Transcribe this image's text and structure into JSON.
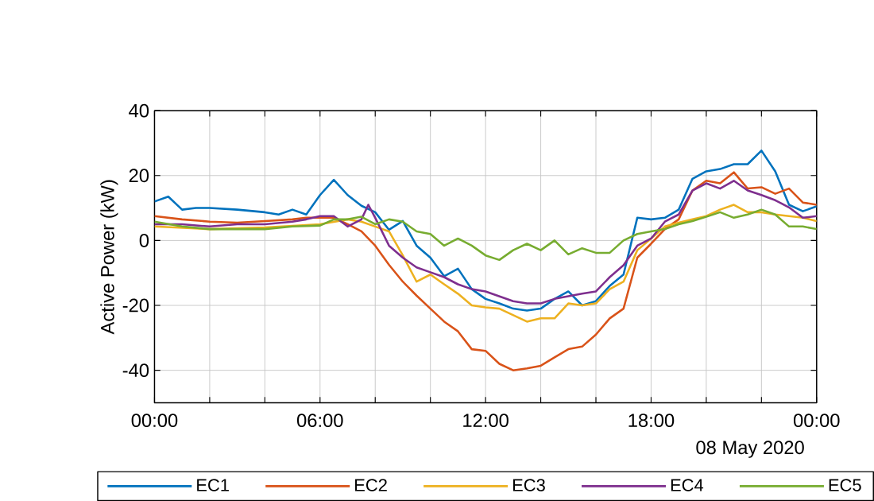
{
  "chart_data": {
    "type": "line",
    "ylabel": "Active Power (kW)",
    "xlim": [
      0,
      24
    ],
    "ylim": [
      -50,
      40
    ],
    "xticks": [
      {
        "value": 0,
        "label": "00:00"
      },
      {
        "value": 2,
        "label": null
      },
      {
        "value": 4,
        "label": null
      },
      {
        "value": 6,
        "label": "06:00"
      },
      {
        "value": 8,
        "label": null
      },
      {
        "value": 10,
        "label": null
      },
      {
        "value": 12,
        "label": "12:00"
      },
      {
        "value": 14,
        "label": null
      },
      {
        "value": 16,
        "label": null
      },
      {
        "value": 18,
        "label": "18:00"
      },
      {
        "value": 20,
        "label": null
      },
      {
        "value": 22,
        "label": null
      },
      {
        "value": 24,
        "label": "00:00"
      }
    ],
    "yticks": [
      -40,
      -20,
      0,
      20,
      40
    ],
    "grid": true,
    "legend": "bottom",
    "marker": "none",
    "line_style": "solid",
    "annotations": [
      "08 May 2020"
    ],
    "series": [
      {
        "name": "EC1",
        "color": "#0072bd",
        "x": [
          0,
          0.5,
          1,
          1.5,
          2,
          3,
          4,
          4.5,
          5,
          5.5,
          6,
          6.5,
          7,
          7.5,
          8,
          8.5,
          9,
          9.5,
          10,
          10.5,
          11,
          11.5,
          12,
          12.5,
          13,
          13.5,
          14,
          14.5,
          15,
          15.5,
          16,
          16.5,
          17,
          17.5,
          18,
          18.5,
          19,
          19.5,
          20,
          20.5,
          21,
          21.5,
          22,
          22.5,
          23,
          23.5,
          24
        ],
        "values": [
          12,
          13.5,
          9.5,
          10,
          10,
          9.5,
          8.7,
          8,
          9.5,
          8,
          14,
          18.7,
          14,
          10.7,
          8.7,
          3.3,
          6,
          -1.6,
          -5.3,
          -11,
          -8.7,
          -15,
          -18,
          -19.4,
          -21,
          -21.6,
          -21,
          -18,
          -15.7,
          -20,
          -18.7,
          -14,
          -10.5,
          7,
          6.5,
          7,
          9.5,
          19,
          21.3,
          22,
          23.5,
          23.5,
          27.7,
          21.3,
          11,
          9,
          10.5
        ]
      },
      {
        "name": "EC2",
        "color": "#d95319",
        "x": [
          0,
          1,
          2,
          3,
          4,
          5,
          5.5,
          6,
          6.5,
          7,
          7.5,
          8,
          8.5,
          9,
          9.5,
          10,
          10.5,
          11,
          11.5,
          12,
          12.5,
          13,
          13.5,
          14,
          14.5,
          15,
          15.5,
          16,
          16.5,
          17,
          17.5,
          18,
          18.5,
          19,
          19.5,
          20,
          20.5,
          21,
          21.5,
          22,
          22.5,
          23,
          23.5,
          24
        ],
        "values": [
          7.5,
          6.5,
          5.8,
          5.5,
          6,
          6.5,
          7,
          7,
          7,
          5,
          2.8,
          -1.6,
          -7.5,
          -12.7,
          -17,
          -21,
          -25,
          -28,
          -33.5,
          -34,
          -38,
          -40,
          -39.4,
          -38.6,
          -36,
          -33.5,
          -32.7,
          -29,
          -24,
          -21,
          -5.3,
          -1,
          3.5,
          6.5,
          15.4,
          18.4,
          17.6,
          21,
          16,
          16.4,
          14.4,
          16,
          11.7,
          11
        ]
      },
      {
        "name": "EC3",
        "color": "#edb120",
        "x": [
          0,
          2,
          4,
          6,
          7,
          7.5,
          8,
          8.5,
          9,
          9.5,
          10,
          10.5,
          11,
          11.5,
          12,
          12.5,
          13,
          13.5,
          14,
          14.5,
          15,
          15.5,
          16,
          16.5,
          17,
          17.5,
          18,
          18.5,
          19,
          19.5,
          20,
          20.5,
          21,
          21.5,
          22,
          22.5,
          23,
          23.5,
          24
        ],
        "values": [
          4.3,
          3.5,
          4,
          5,
          6.5,
          5.8,
          4.3,
          2.8,
          -4.6,
          -12.7,
          -10.5,
          -13.5,
          -16.4,
          -20,
          -20.6,
          -21,
          -23,
          -25,
          -24,
          -24,
          -19.4,
          -20,
          -19.4,
          -15,
          -12.7,
          -3,
          0.6,
          4.3,
          5.5,
          6.5,
          7.5,
          9.5,
          11,
          8.7,
          8.7,
          8,
          7.5,
          7,
          6
        ]
      },
      {
        "name": "EC4",
        "color": "#7e2f8e",
        "x": [
          0,
          1,
          2,
          3,
          4,
          5,
          5.5,
          6,
          6.5,
          7,
          7.5,
          7.75,
          8,
          8.5,
          9,
          9.5,
          10,
          10.5,
          11,
          11.5,
          12,
          12.5,
          13,
          13.5,
          14,
          14.5,
          15,
          15.5,
          16,
          16.5,
          17,
          17.5,
          18,
          18.5,
          19,
          19.5,
          20,
          20.5,
          21,
          21.5,
          22,
          22.5,
          23,
          23.5,
          24
        ],
        "values": [
          5,
          5,
          4.3,
          5,
          5,
          5.8,
          6.5,
          7.5,
          7.5,
          4.3,
          6.5,
          11,
          7,
          -1.6,
          -5.3,
          -8.3,
          -9.8,
          -11.3,
          -13.5,
          -15,
          -15.7,
          -17.2,
          -18.7,
          -19.4,
          -19.4,
          -18,
          -17.2,
          -16.4,
          -15.7,
          -11.3,
          -7.6,
          -1.6,
          0.6,
          5.8,
          8,
          15.4,
          17.6,
          16,
          18.4,
          15.4,
          14,
          12.4,
          10.2,
          7,
          7.5
        ]
      },
      {
        "name": "EC5",
        "color": "#77ac30",
        "x": [
          0,
          1,
          2,
          3,
          4,
          5,
          6,
          6.5,
          7,
          7.5,
          8,
          8.5,
          9,
          9.5,
          10,
          10.5,
          11,
          11.5,
          12,
          12.5,
          13,
          13.5,
          14,
          14.5,
          15,
          15.5,
          16,
          16.5,
          17,
          17.5,
          18,
          18.5,
          19,
          19.5,
          20,
          20.5,
          21,
          21.5,
          22,
          22.5,
          23,
          23.5,
          24
        ],
        "values": [
          5.8,
          4.3,
          3.5,
          3.5,
          3.5,
          4.3,
          4.6,
          6.5,
          6.5,
          7.3,
          5,
          6.5,
          5.8,
          2.8,
          2,
          -1.6,
          0.6,
          -1.6,
          -4.6,
          -6,
          -3,
          -1,
          -3,
          0,
          -4.3,
          -2.4,
          -3.8,
          -3.8,
          0,
          2,
          2.8,
          3.5,
          5,
          6,
          7.3,
          8.7,
          7,
          8,
          9.5,
          8,
          4.3,
          4.3,
          3.5
        ]
      }
    ]
  }
}
